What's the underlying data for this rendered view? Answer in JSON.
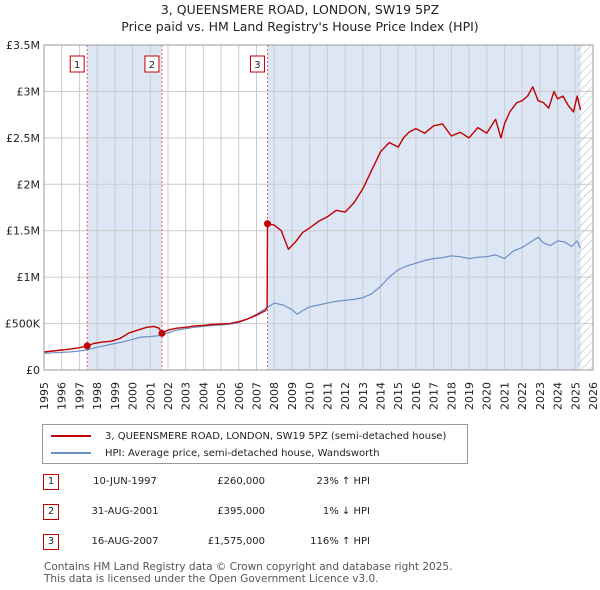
{
  "title_line1": "3, QUEENSMERE ROAD, LONDON, SW19 5PZ",
  "title_line2": "Price paid vs. HM Land Registry's House Price Index (HPI)",
  "colors": {
    "price_line": "#c00000",
    "hpi_line": "#6b8fc7",
    "grid": "#cccccc",
    "shade": "#dde6f4",
    "marker_line": "#e06070",
    "hatch": "#b0b0b0"
  },
  "chart_data": {
    "type": "line",
    "title": "Price paid vs. HM Land Registry's House Price Index (HPI)",
    "xlabel": "",
    "ylabel": "",
    "xlim": [
      1995,
      2026
    ],
    "ylim": [
      0,
      3500000
    ],
    "y_ticks": [
      {
        "value": 0,
        "label": "£0"
      },
      {
        "value": 500000,
        "label": "£500K"
      },
      {
        "value": 1000000,
        "label": "£1M"
      },
      {
        "value": 1500000,
        "label": "£1.5M"
      },
      {
        "value": 2000000,
        "label": "£2M"
      },
      {
        "value": 2500000,
        "label": "£2.5M"
      },
      {
        "value": 3000000,
        "label": "£3M"
      },
      {
        "value": 3500000,
        "label": "£3.5M"
      }
    ],
    "x_ticks": [
      "1995",
      "1996",
      "1997",
      "1998",
      "1999",
      "2000",
      "2001",
      "2002",
      "2003",
      "2004",
      "2005",
      "2006",
      "2007",
      "2008",
      "2009",
      "2010",
      "2011",
      "2012",
      "2013",
      "2014",
      "2015",
      "2016",
      "2017",
      "2018",
      "2019",
      "2020",
      "2021",
      "2022",
      "2023",
      "2024",
      "2025",
      "2026"
    ],
    "grid": true,
    "ownership_shade_ranges": [
      [
        1997.44,
        2001.66
      ],
      [
        2007.62,
        2025.3
      ]
    ],
    "future_hatch_from": 2025.1,
    "series": [
      {
        "name": "3, QUEENSMERE ROAD, LONDON, SW19 5PZ (semi-detached house)",
        "color": "#c00000",
        "x": [
          1995.0,
          1995.5,
          1996.0,
          1996.5,
          1997.0,
          1997.44,
          1997.8,
          1998.3,
          1998.8,
          1999.3,
          1999.8,
          2000.3,
          2000.8,
          2001.2,
          2001.5,
          2001.66,
          2002.0,
          2002.5,
          2003.0,
          2003.5,
          2004.0,
          2004.5,
          2005.0,
          2005.5,
          2006.0,
          2006.5,
          2007.0,
          2007.5,
          2007.6,
          2007.62,
          2008.0,
          2008.4,
          2008.8,
          2009.2,
          2009.6,
          2010.0,
          2010.5,
          2011.0,
          2011.5,
          2012.0,
          2012.5,
          2013.0,
          2013.5,
          2014.0,
          2014.5,
          2015.0,
          2015.3,
          2015.6,
          2016.0,
          2016.5,
          2017.0,
          2017.5,
          2018.0,
          2018.5,
          2019.0,
          2019.5,
          2020.0,
          2020.5,
          2020.8,
          2021.0,
          2021.3,
          2021.7,
          2022.0,
          2022.3,
          2022.6,
          2022.9,
          2023.2,
          2023.5,
          2023.8,
          2024.0,
          2024.3,
          2024.6,
          2024.9,
          2025.1,
          2025.3
        ],
        "y": [
          195000,
          205000,
          215000,
          225000,
          240000,
          260000,
          285000,
          300000,
          310000,
          340000,
          400000,
          430000,
          460000,
          470000,
          450000,
          395000,
          430000,
          450000,
          460000,
          475000,
          480000,
          490000,
          495000,
          500000,
          520000,
          550000,
          590000,
          640000,
          680000,
          1575000,
          1560000,
          1500000,
          1300000,
          1380000,
          1480000,
          1530000,
          1600000,
          1650000,
          1720000,
          1700000,
          1800000,
          1950000,
          2150000,
          2350000,
          2450000,
          2400000,
          2500000,
          2560000,
          2600000,
          2550000,
          2630000,
          2650000,
          2520000,
          2560000,
          2500000,
          2610000,
          2550000,
          2700000,
          2500000,
          2650000,
          2780000,
          2880000,
          2900000,
          2950000,
          3050000,
          2900000,
          2880000,
          2820000,
          3000000,
          2920000,
          2950000,
          2850000,
          2780000,
          2950000,
          2800000
        ]
      },
      {
        "name": "HPI: Average price, semi-detached house, Wandsworth",
        "color": "#6b8fc7",
        "x": [
          1995.0,
          1995.5,
          1996.0,
          1996.5,
          1997.0,
          1997.5,
          1998.0,
          1998.5,
          1999.0,
          1999.5,
          2000.0,
          2000.5,
          2001.0,
          2001.5,
          2002.0,
          2002.5,
          2003.0,
          2003.5,
          2004.0,
          2004.5,
          2005.0,
          2005.5,
          2006.0,
          2006.5,
          2007.0,
          2007.5,
          2008.0,
          2008.5,
          2009.0,
          2009.3,
          2009.6,
          2010.0,
          2010.5,
          2011.0,
          2011.5,
          2012.0,
          2012.5,
          2013.0,
          2013.5,
          2014.0,
          2014.5,
          2015.0,
          2015.5,
          2016.0,
          2016.5,
          2017.0,
          2017.5,
          2018.0,
          2018.5,
          2019.0,
          2019.5,
          2020.0,
          2020.5,
          2021.0,
          2021.5,
          2022.0,
          2022.5,
          2022.9,
          2023.2,
          2023.6,
          2024.0,
          2024.4,
          2024.8,
          2025.1,
          2025.3
        ],
        "y": [
          180000,
          185000,
          190000,
          195000,
          205000,
          220000,
          245000,
          265000,
          285000,
          305000,
          330000,
          355000,
          360000,
          370000,
          400000,
          430000,
          445000,
          460000,
          470000,
          480000,
          485000,
          495000,
          510000,
          550000,
          600000,
          660000,
          720000,
          700000,
          650000,
          600000,
          640000,
          680000,
          700000,
          720000,
          740000,
          750000,
          760000,
          780000,
          820000,
          900000,
          1000000,
          1080000,
          1120000,
          1150000,
          1180000,
          1200000,
          1210000,
          1230000,
          1220000,
          1200000,
          1215000,
          1220000,
          1240000,
          1200000,
          1280000,
          1320000,
          1380000,
          1430000,
          1370000,
          1340000,
          1390000,
          1380000,
          1330000,
          1390000,
          1310000
        ]
      }
    ],
    "sales": [
      {
        "label": "1",
        "x": 1997.44,
        "price": 260000
      },
      {
        "label": "2",
        "x": 2001.66,
        "price": 395000
      },
      {
        "label": "3",
        "x": 2007.62,
        "price": 1575000
      }
    ]
  },
  "legend": {
    "price_label": "3, QUEENSMERE ROAD, LONDON, SW19 5PZ (semi-detached house)",
    "hpi_label": "HPI: Average price, semi-detached house, Wandsworth"
  },
  "sales_table": [
    {
      "num": "1",
      "date": "10-JUN-1997",
      "price": "£260,000",
      "change": "23% ↑ HPI"
    },
    {
      "num": "2",
      "date": "31-AUG-2001",
      "price": "£395,000",
      "change": "1% ↓ HPI"
    },
    {
      "num": "3",
      "date": "16-AUG-2007",
      "price": "£1,575,000",
      "change": "116% ↑ HPI"
    }
  ],
  "footer_line1": "Contains HM Land Registry data © Crown copyright and database right 2025.",
  "footer_line2": "This data is licensed under the Open Government Licence v3.0."
}
